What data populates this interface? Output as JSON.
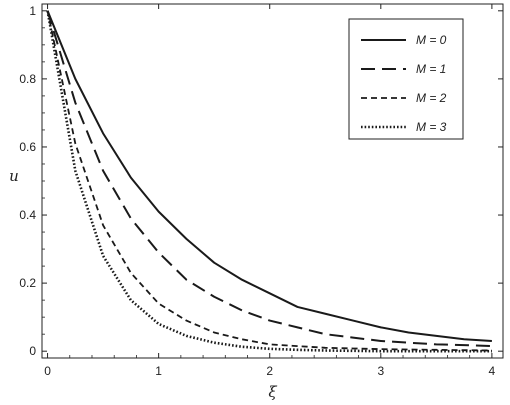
{
  "chart_data": {
    "type": "line",
    "title": "",
    "xlabel": "ξ",
    "ylabel": "u",
    "xlim": [
      -0.05,
      4.1
    ],
    "ylim": [
      -0.02,
      1.02
    ],
    "xticks": [
      "0",
      "1",
      "2",
      "3",
      "4"
    ],
    "yticks": [
      "0",
      "0.2",
      "0.4",
      "0.6",
      "0.8",
      "1"
    ],
    "grid": false,
    "legend_position": "top-right",
    "x": [
      0,
      0.25,
      0.5,
      0.75,
      1,
      1.25,
      1.5,
      1.75,
      2,
      2.25,
      2.5,
      2.75,
      3,
      3.25,
      3.5,
      3.75,
      4
    ],
    "series": [
      {
        "name": "M = 0",
        "style": "solid",
        "values": [
          1.0,
          0.8,
          0.64,
          0.51,
          0.41,
          0.33,
          0.26,
          0.21,
          0.17,
          0.13,
          0.11,
          0.09,
          0.07,
          0.055,
          0.045,
          0.035,
          0.03
        ]
      },
      {
        "name": "M = 1",
        "style": "long-dash",
        "values": [
          1.0,
          0.73,
          0.53,
          0.39,
          0.29,
          0.21,
          0.16,
          0.12,
          0.09,
          0.07,
          0.05,
          0.04,
          0.03,
          0.025,
          0.02,
          0.018,
          0.015
        ]
      },
      {
        "name": "M = 2",
        "style": "short-dash",
        "values": [
          1.0,
          0.61,
          0.37,
          0.23,
          0.14,
          0.09,
          0.055,
          0.035,
          0.02,
          0.015,
          0.01,
          0.008,
          0.006,
          0.005,
          0.004,
          0.003,
          0.002
        ]
      },
      {
        "name": "M = 3",
        "style": "dotted",
        "values": [
          1.0,
          0.53,
          0.28,
          0.15,
          0.08,
          0.045,
          0.025,
          0.013,
          0.007,
          0.004,
          0.002,
          0.001,
          0.0,
          0.0,
          0.0,
          0.0,
          0.0
        ]
      }
    ]
  }
}
